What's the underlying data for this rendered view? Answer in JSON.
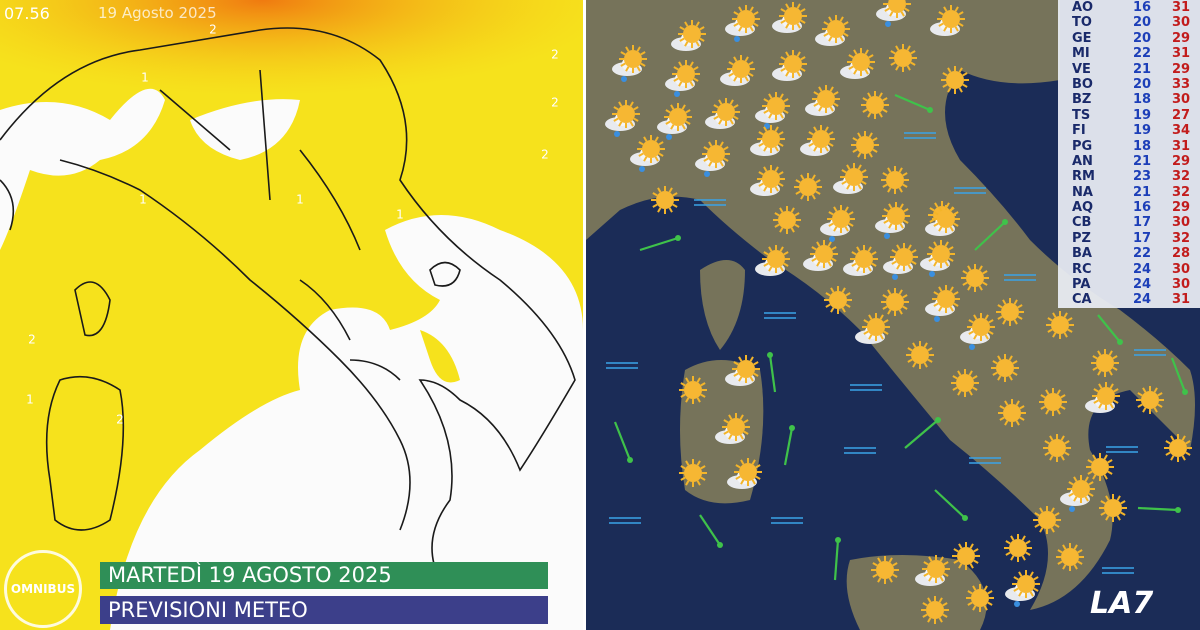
{
  "header": {
    "time": "07.56",
    "date": "19 Agosto 2025"
  },
  "left_map": {
    "isoline_labels": [
      "2",
      "1",
      "2",
      "1",
      "2",
      "1",
      "1",
      "2",
      "2",
      "1",
      "2"
    ]
  },
  "temperature_table": {
    "rows": [
      [
        "AO",
        16,
        31
      ],
      [
        "TO",
        20,
        30
      ],
      [
        "GE",
        20,
        29
      ],
      [
        "MI",
        22,
        31
      ],
      [
        "VE",
        21,
        29
      ],
      [
        "BO",
        20,
        33
      ],
      [
        "BZ",
        18,
        30
      ],
      [
        "TS",
        19,
        27
      ],
      [
        "FI",
        19,
        34
      ],
      [
        "PG",
        18,
        31
      ],
      [
        "AN",
        21,
        29
      ],
      [
        "RM",
        23,
        32
      ],
      [
        "NA",
        21,
        32
      ],
      [
        "AQ",
        16,
        29
      ],
      [
        "CB",
        17,
        30
      ],
      [
        "PZ",
        17,
        32
      ],
      [
        "BA",
        22,
        28
      ],
      [
        "RC",
        24,
        30
      ],
      [
        "PA",
        24,
        30
      ],
      [
        "CA",
        24,
        31
      ]
    ]
  },
  "channel_logo": "OMNIBUS",
  "banner": {
    "date": "MARTEDÌ 19 AGOSTO 2025",
    "title": "PREVISIONI METEO"
  },
  "broadcaster_logo": "LA7"
}
